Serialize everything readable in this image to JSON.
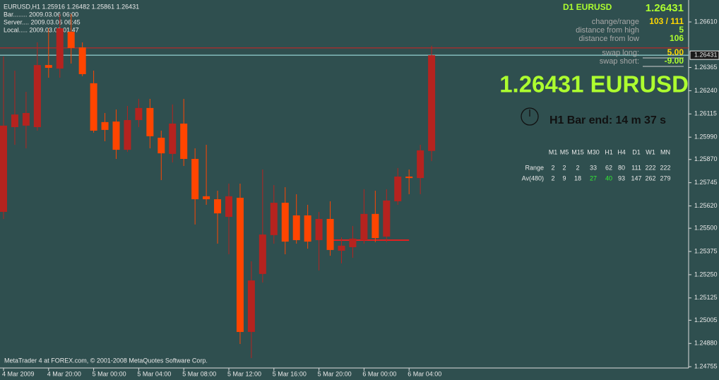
{
  "header": {
    "symbol_line": "EURUSD,H1  1.25916 1.26482 1.25861 1.26431",
    "bar": "Bar........ 2009.03.06 06:00",
    "server": "Server.... 2009.03.06 06:45",
    "local": "Local..... 2009.03.06 01:47"
  },
  "info_panel": {
    "title": "D1 EURUSD",
    "price": "1.26431",
    "rows": [
      [
        "change/range",
        "103 / 111"
      ],
      [
        "distance from high",
        "5"
      ],
      [
        "distance from low",
        "106"
      ],
      [
        "swap long:",
        "5.00"
      ],
      [
        "swap short:",
        "-9.00"
      ]
    ]
  },
  "big_label": "1.26431 EURUSD",
  "bar_timer": "H1 Bar end: 14 m 37 s",
  "stats_table": {
    "columns": [
      "M1",
      "M5",
      "M15",
      "M30",
      "H1",
      "H4",
      "D1",
      "W1",
      "MN"
    ],
    "rows": [
      {
        "label": "Range",
        "values": [
          2,
          2,
          2,
          33,
          62,
          80,
          111,
          222,
          222
        ]
      },
      {
        "label": "Av(480)",
        "values": [
          2,
          9,
          18,
          27,
          40,
          93,
          147,
          262,
          279
        ]
      }
    ],
    "highlight_color": "#33ee33",
    "highlight_cells": [
      [
        1,
        3
      ],
      [
        1,
        4
      ]
    ]
  },
  "footer": "MetaTrader 4 at FOREX.com, © 2001-2008 MetaQuotes Software Corp.",
  "chart_data": {
    "type": "candlestick",
    "categories": [
      "4 Mar 2009",
      null,
      null,
      null,
      "4 Mar 20:00",
      null,
      null,
      null,
      "5 Mar 00:00",
      null,
      null,
      null,
      "5 Mar 04:00",
      null,
      null,
      null,
      "5 Mar 08:00",
      null,
      null,
      null,
      "5 Mar 12:00",
      null,
      null,
      null,
      "5 Mar 16:00",
      null,
      null,
      null,
      "5 Mar 20:00",
      null,
      null,
      null,
      "6 Mar 00:00",
      null,
      null,
      null,
      "6 Mar 04:00",
      null,
      null
    ],
    "open": [
      1.25588,
      1.26044,
      1.26052,
      1.26044,
      1.26378,
      1.26359,
      1.26557,
      1.26473,
      1.2628,
      1.26071,
      1.26074,
      1.25922,
      1.26082,
      1.26147,
      1.25987,
      1.259,
      1.26063,
      1.25873,
      1.25672,
      1.25656,
      1.25561,
      1.25664,
      1.24942,
      1.25254,
      1.25463,
      1.25637,
      1.25569,
      1.25569,
      1.25436,
      1.2555,
      1.25379,
      1.25398,
      1.25436,
      1.25577,
      1.25455,
      1.25645,
      1.25778,
      1.2577,
      1.25916
    ],
    "high": [
      1.26424,
      1.26348,
      1.26234,
      1.265,
      1.26576,
      1.26652,
      1.26652,
      1.265,
      1.26348,
      1.2612,
      1.26139,
      1.26158,
      1.26196,
      1.26196,
      1.26025,
      1.26166,
      1.26196,
      1.2593,
      1.25949,
      1.25702,
      1.2574,
      1.2574,
      1.25322,
      1.25816,
      1.25732,
      1.25721,
      1.25683,
      1.25626,
      1.25588,
      1.25645,
      1.25451,
      1.25512,
      1.2571,
      1.25702,
      1.2571,
      1.25824,
      1.25816,
      1.25949,
      1.26482
    ],
    "low": [
      1.2555,
      1.25949,
      1.2593,
      1.26025,
      1.2631,
      1.2631,
      1.26386,
      1.26318,
      1.26014,
      1.25968,
      1.25873,
      1.25911,
      1.26044,
      1.2593,
      1.25759,
      1.25854,
      1.25835,
      1.2552,
      1.25626,
      1.25417,
      1.2536,
      1.24877,
      1.24801,
      1.25208,
      1.25417,
      1.2536,
      1.25417,
      1.2539,
      1.25273,
      1.25352,
      1.25311,
      1.25341,
      1.25417,
      1.25425,
      1.25425,
      1.25626,
      1.25683,
      1.25683,
      1.25861
    ],
    "close": [
      1.26052,
      1.26112,
      1.2612,
      1.26378,
      1.26363,
      1.26576,
      1.2647,
      1.26329,
      1.26025,
      1.26029,
      1.25922,
      1.26082,
      1.26147,
      1.25995,
      1.25903,
      1.26063,
      1.25873,
      1.25656,
      1.25656,
      1.2558,
      1.25672,
      1.24942,
      1.25219,
      1.25466,
      1.25637,
      1.25428,
      1.25436,
      1.25428,
      1.2555,
      1.25383,
      1.25406,
      1.25444,
      1.25577,
      1.25447,
      1.25649,
      1.25778,
      1.2577,
      1.25919,
      1.26431
    ],
    "up_color": "#b5231f",
    "down_color": "#ff4500",
    "ylim": [
      1.24748,
      1.26728
    ],
    "yticks": [
      {
        "value": 1.2661,
        "label": "1.26610"
      },
      1.26365,
      {
        "value": 1.2624,
        "label": "1.26240"
      },
      1.26115,
      {
        "value": 1.2599,
        "label": "1.25990"
      },
      {
        "value": 1.2587,
        "label": "1.25870"
      },
      1.25745,
      {
        "value": 1.2562,
        "label": "1.25620"
      },
      {
        "value": 1.255,
        "label": "1.25500"
      },
      1.25375,
      {
        "value": 1.2525,
        "label": "1.25250"
      },
      1.25125,
      1.25005,
      {
        "value": 1.2488,
        "label": "1.24880"
      },
      1.24755
    ],
    "current_price": 1.26431,
    "hlines": [
      {
        "value": 1.2647,
        "color": "#d42020"
      },
      {
        "value": 1.26431,
        "color": "#aef0f0"
      },
      {
        "value": 1.25436,
        "color": "#e02020",
        "from": 29,
        "to": 36
      }
    ]
  }
}
